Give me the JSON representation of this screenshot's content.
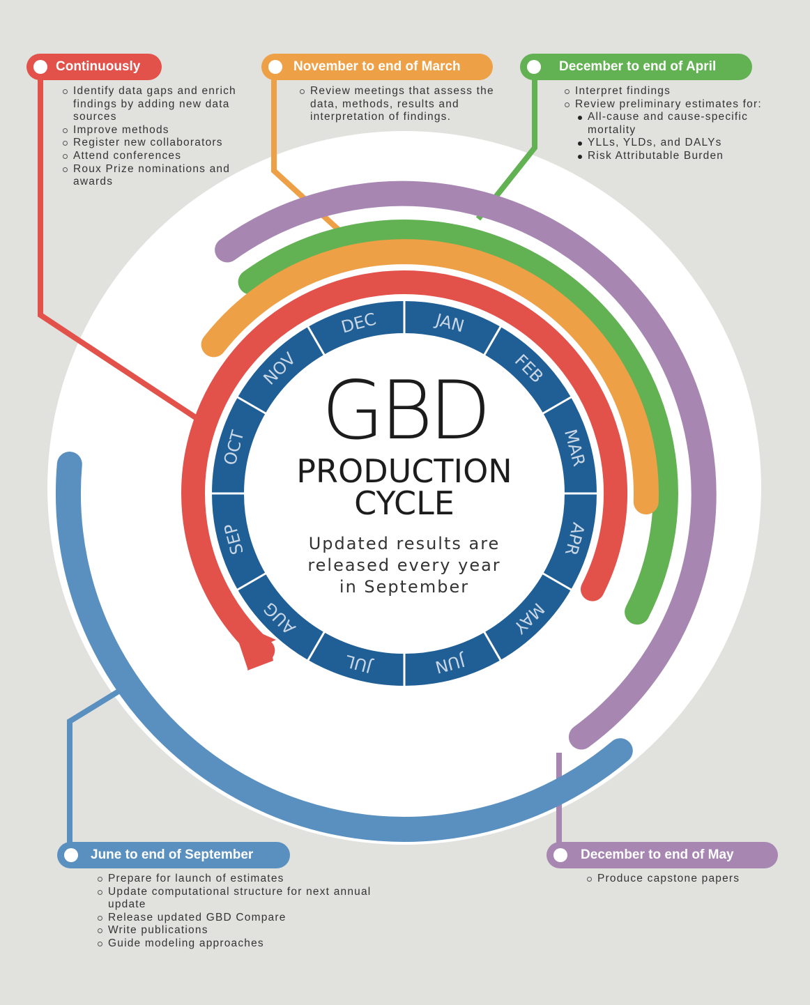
{
  "center": {
    "title": "GBD",
    "subtitle_line1": "PRODUCTION",
    "subtitle_line2": "CYCLE",
    "note_line1": "Updated results are",
    "note_line2": "released every year",
    "note_line3": "in September"
  },
  "months": [
    "JAN",
    "FEB",
    "MAR",
    "APR",
    "MAY",
    "JUN",
    "JUL",
    "AUG",
    "SEP",
    "OCT",
    "NOV",
    "DEC"
  ],
  "phases": {
    "continuously": {
      "label": "Continuously",
      "color": "#e2514a",
      "items": [
        "Identify data gaps and enrich findings by adding new data sources",
        "Improve methods",
        "Register new collaborators",
        "Attend conferences",
        "Roux Prize nominations and awards"
      ]
    },
    "nov_mar": {
      "label": "November to end of March",
      "color": "#eea046",
      "items": [
        "Review meetings that assess the data, methods, results and interpretation of findings."
      ]
    },
    "dec_apr": {
      "label": "December to end of April",
      "color": "#62b153",
      "items": [
        "Interpret findings",
        "Review preliminary estimates for:"
      ],
      "subitems": [
        "All-cause and cause-specific mortality",
        "YLLs, YLDs, and DALYs",
        "Risk Attributable Burden"
      ]
    },
    "jun_sep": {
      "label": "June to end of September",
      "color": "#5990c0",
      "items": [
        "Prepare for launch of estimates",
        "Update computational structure for next annual update",
        "Release updated GBD Compare",
        "Write publications",
        "Guide modeling approaches"
      ]
    },
    "dec_may": {
      "label": "December to end of May",
      "color": "#a787b2",
      "items": [
        "Produce capstone papers"
      ]
    }
  },
  "colors": {
    "background": "#e1e2dd",
    "month_ring": "#1f5f96",
    "month_text": "#c9d6e4"
  }
}
